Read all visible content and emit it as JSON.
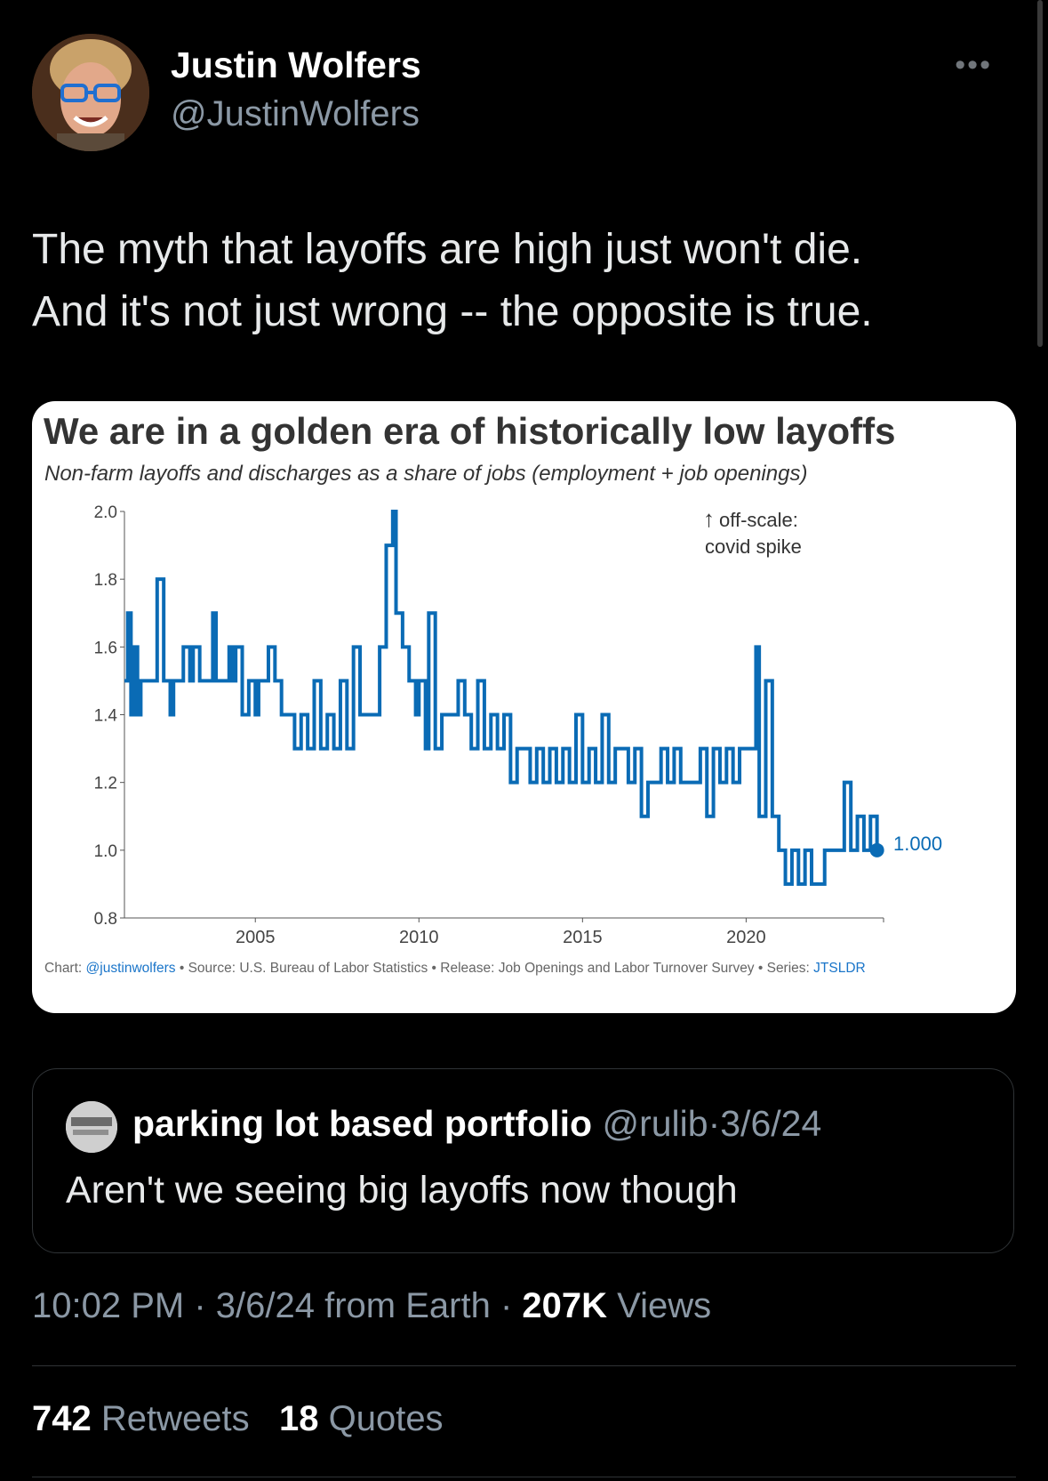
{
  "author": {
    "name": "Justin Wolfers",
    "handle": "@JustinWolfers"
  },
  "more_label": "•••",
  "tweet_lines": [
    "The myth that layoffs are high just won't die.",
    "And it's not just wrong -- the opposite is true."
  ],
  "chart_data": {
    "type": "line",
    "title": "We are in a golden era of historically low layoffs",
    "subtitle": "Non-farm layoffs and discharges as a share of jobs (employment + job openings)",
    "ylim": [
      0.8,
      2.0
    ],
    "yticks": [
      0.8,
      1.0,
      1.2,
      1.4,
      1.6,
      1.8,
      2.0
    ],
    "ytick_labels": [
      "0.8",
      "1.0",
      "1.2",
      "1.4",
      "1.6",
      "1.8",
      "2.0"
    ],
    "xlim": [
      2001.0,
      2024.2
    ],
    "xticks": [
      2005,
      2010,
      2015,
      2020
    ],
    "line_color": "#0a6bb5",
    "annotation": [
      "off-scale:",
      "covid spike"
    ],
    "last_value_label": "1.000",
    "series": [
      {
        "x": [
          2001.0,
          2001.1,
          2001.2,
          2001.3,
          2001.4,
          2001.5,
          2001.6,
          2001.7,
          2001.8,
          2002.0,
          2002.2,
          2002.3,
          2002.4,
          2002.5,
          2002.6,
          2002.8,
          2003.0,
          2003.1,
          2003.3,
          2003.5,
          2003.7,
          2003.8,
          2004.0,
          2004.2,
          2004.3,
          2004.4,
          2004.6,
          2004.8,
          2005.0,
          2005.1,
          2005.2,
          2005.4,
          2005.6,
          2005.8,
          2006.0,
          2006.2,
          2006.4,
          2006.6,
          2006.8,
          2007.0,
          2007.2,
          2007.4,
          2007.6,
          2007.8,
          2008.0,
          2008.2,
          2008.4,
          2008.6,
          2008.8,
          2009.0,
          2009.1,
          2009.2,
          2009.3,
          2009.5,
          2009.7,
          2009.9,
          2010.0,
          2010.2,
          2010.3,
          2010.5,
          2010.7,
          2010.8,
          2011.0,
          2011.2,
          2011.4,
          2011.6,
          2011.8,
          2012.0,
          2012.2,
          2012.4,
          2012.6,
          2012.8,
          2013.0,
          2013.2,
          2013.4,
          2013.6,
          2013.8,
          2014.0,
          2014.2,
          2014.4,
          2014.6,
          2014.8,
          2015.0,
          2015.2,
          2015.4,
          2015.6,
          2015.8,
          2016.0,
          2016.2,
          2016.4,
          2016.6,
          2016.8,
          2017.0,
          2017.2,
          2017.4,
          2017.6,
          2017.8,
          2018.0,
          2018.2,
          2018.4,
          2018.6,
          2018.8,
          2019.0,
          2019.2,
          2019.4,
          2019.6,
          2019.8,
          2020.0,
          2020.3,
          2020.4,
          2020.6,
          2020.8,
          2021.0,
          2021.2,
          2021.4,
          2021.6,
          2021.8,
          2022.0,
          2022.2,
          2022.4,
          2022.6,
          2022.8,
          2023.0,
          2023.2,
          2023.4,
          2023.6,
          2023.8,
          2024.0
        ],
        "y": [
          1.5,
          1.7,
          1.4,
          1.6,
          1.4,
          1.5,
          1.5,
          1.5,
          1.5,
          1.8,
          1.5,
          1.5,
          1.4,
          1.5,
          1.5,
          1.6,
          1.5,
          1.6,
          1.5,
          1.5,
          1.7,
          1.5,
          1.5,
          1.6,
          1.5,
          1.6,
          1.4,
          1.5,
          1.4,
          1.5,
          1.5,
          1.6,
          1.5,
          1.4,
          1.4,
          1.3,
          1.4,
          1.3,
          1.5,
          1.3,
          1.4,
          1.3,
          1.5,
          1.3,
          1.6,
          1.4,
          1.4,
          1.4,
          1.6,
          1.9,
          1.9,
          2.0,
          1.7,
          1.6,
          1.5,
          1.4,
          1.5,
          1.3,
          1.7,
          1.3,
          1.4,
          1.4,
          1.4,
          1.5,
          1.4,
          1.3,
          1.5,
          1.3,
          1.4,
          1.3,
          1.4,
          1.2,
          1.3,
          1.3,
          1.2,
          1.3,
          1.2,
          1.3,
          1.2,
          1.3,
          1.2,
          1.4,
          1.2,
          1.3,
          1.2,
          1.4,
          1.2,
          1.3,
          1.3,
          1.2,
          1.3,
          1.1,
          1.2,
          1.2,
          1.3,
          1.2,
          1.3,
          1.2,
          1.2,
          1.2,
          1.3,
          1.1,
          1.3,
          1.2,
          1.3,
          1.2,
          1.3,
          1.3,
          1.6,
          1.1,
          1.5,
          1.1,
          1.0,
          0.9,
          1.0,
          0.9,
          1.0,
          0.9,
          0.9,
          1.0,
          1.0,
          1.0,
          1.2,
          1.0,
          1.1,
          1.0,
          1.1,
          1.0
        ]
      }
    ],
    "footer": {
      "chart_label": "Chart:",
      "chart_link": "@justinwolfers",
      "source": "• Source: U.S. Bureau of Labor Statistics • Release: Job Openings and Labor Turnover Survey • Series:",
      "series_id": "JTSLDR"
    }
  },
  "quoted_tweet": {
    "name": "parking lot based portfolio",
    "handle": "@rulib",
    "separator": "·",
    "date": "3/6/24",
    "text": "Aren't we seeing big layoffs now though"
  },
  "meta": {
    "time": "10:02 PM",
    "dot1": "·",
    "date_location": "3/6/24 from Earth",
    "dot2": "·",
    "views_count": "207K",
    "views_label": "Views"
  },
  "stats": {
    "retweets_count": "742",
    "retweets_label": "Retweets",
    "quotes_count": "18",
    "quotes_label": "Quotes"
  }
}
